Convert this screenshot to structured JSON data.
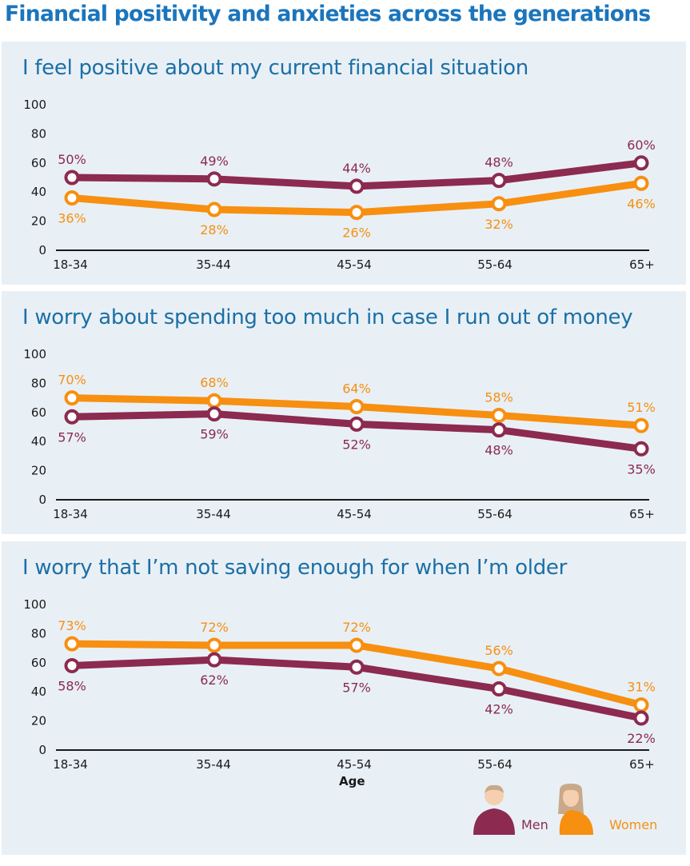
{
  "title": "Financial positivity and anxieties across the generations",
  "colors": {
    "men": "#8c2a4f",
    "women": "#f78f10",
    "title": "#1b75bc",
    "panel_bg": "#e8f0f6"
  },
  "chart_data": [
    {
      "type": "line",
      "title": "I feel positive about my current financial situation",
      "categories": [
        "18-34",
        "35-44",
        "45-54",
        "55-64",
        "65+"
      ],
      "ylim": [
        0,
        100
      ],
      "yticks": [
        "0",
        "20",
        "40",
        "60",
        "80",
        "100"
      ],
      "series": [
        {
          "name": "Men",
          "values": [
            50,
            49,
            44,
            48,
            60
          ],
          "labels": [
            "50%",
            "49%",
            "44%",
            "48%",
            "60%"
          ]
        },
        {
          "name": "Women",
          "values": [
            36,
            28,
            26,
            32,
            46
          ],
          "labels": [
            "36%",
            "28%",
            "26%",
            "32%",
            "46%"
          ]
        }
      ]
    },
    {
      "type": "line",
      "title": "I worry about spending too much in case I run out of money",
      "categories": [
        "18-34",
        "35-44",
        "45-54",
        "55-64",
        "65+"
      ],
      "ylim": [
        0,
        100
      ],
      "yticks": [
        "0",
        "20",
        "40",
        "60",
        "80",
        "100"
      ],
      "series": [
        {
          "name": "Men",
          "values": [
            57,
            59,
            52,
            48,
            35
          ],
          "labels": [
            "57%",
            "59%",
            "52%",
            "48%",
            "35%"
          ]
        },
        {
          "name": "Women",
          "values": [
            70,
            68,
            64,
            58,
            51
          ],
          "labels": [
            "70%",
            "68%",
            "64%",
            "58%",
            "51%"
          ]
        }
      ]
    },
    {
      "type": "line",
      "title": "I worry that I’m not saving enough for when I’m older",
      "categories": [
        "18-34",
        "35-44",
        "45-54",
        "55-64",
        "65+"
      ],
      "ylim": [
        0,
        100
      ],
      "yticks": [
        "0",
        "20",
        "40",
        "60",
        "80",
        "100"
      ],
      "xlabel": "Age",
      "series": [
        {
          "name": "Men",
          "values": [
            58,
            62,
            57,
            42,
            22
          ],
          "labels": [
            "58%",
            "62%",
            "57%",
            "42%",
            "22%"
          ]
        },
        {
          "name": "Women",
          "values": [
            73,
            72,
            72,
            56,
            31
          ],
          "labels": [
            "73%",
            "72%",
            "72%",
            "56%",
            "31%"
          ]
        }
      ]
    }
  ],
  "legend": {
    "men_label": "Men",
    "women_label": "Women"
  }
}
